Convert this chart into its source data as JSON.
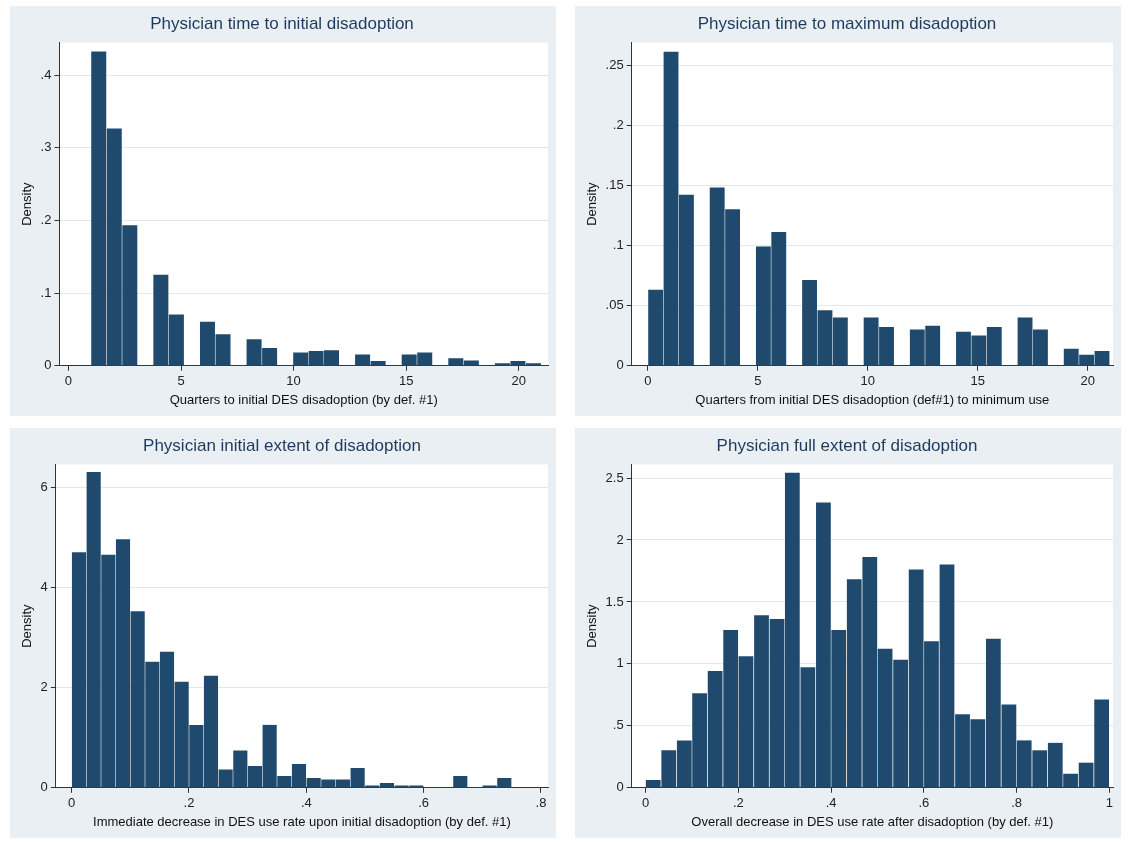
{
  "chart_data": [
    {
      "type": "histogram",
      "title": "Physician time to initial disadoption",
      "xlabel": "Quarters to initial DES disadoption (by def. #1)",
      "ylabel": "Density",
      "color": "#1f4a6e",
      "grid": "y",
      "bins": [
        1,
        1.69,
        2.38,
        3.07,
        3.76,
        4.45,
        5.14,
        5.83,
        6.52,
        7.21,
        7.9,
        8.59,
        9.28,
        9.97,
        10.66,
        11.34,
        12.03,
        12.72,
        13.41,
        14.1,
        14.79,
        15.48,
        16.17,
        16.86,
        17.55,
        18.24,
        18.93,
        19.62,
        20.31,
        21
      ],
      "values": [
        0.432,
        0.326,
        0.193,
        0,
        0.125,
        0.07,
        0,
        0.06,
        0.043,
        0,
        0.036,
        0.024,
        0,
        0.018,
        0.02,
        0.021,
        0,
        0.015,
        0.006,
        0,
        0.015,
        0.018,
        0,
        0.01,
        0.007,
        0,
        0.003,
        0.006,
        0.003
      ],
      "xlim": [
        -0.4,
        21.3
      ],
      "ylim": [
        0,
        0.445
      ],
      "xticks": [
        0,
        5,
        10,
        15,
        20
      ],
      "yticks": [
        0,
        {
          "value": 0.1,
          "label": ".1"
        },
        {
          "value": 0.2,
          "label": ".2"
        },
        {
          "value": 0.3,
          "label": ".3"
        },
        {
          "value": 0.4,
          "label": ".4"
        }
      ]
    },
    {
      "type": "histogram",
      "title": "Physician time to maximum disadoption",
      "xlabel": "Quarters from initial DES disadoption (def#1) to minimum use",
      "ylabel": "Density",
      "color": "#1f4a6e",
      "grid": "y",
      "bins": [
        0,
        0.7,
        1.4,
        2.1,
        2.8,
        3.5,
        4.2,
        4.9,
        5.6,
        6.3,
        7,
        7.7,
        8.4,
        9.1,
        9.8,
        10.5,
        11.2,
        11.9,
        12.6,
        13.3,
        14,
        14.7,
        15.4,
        16.1,
        16.8,
        17.5,
        18.2,
        18.9,
        19.6,
        20.3,
        21
      ],
      "values": [
        0.063,
        0.261,
        0.142,
        0,
        0.148,
        0.13,
        0,
        0.099,
        0.111,
        0,
        0.071,
        0.046,
        0.04,
        0,
        0.04,
        0.032,
        0,
        0.03,
        0.033,
        0,
        0.028,
        0.025,
        0.032,
        0,
        0.04,
        0.03,
        0,
        0.014,
        0.009,
        0.012
      ],
      "xlim": [
        -0.74,
        21.15
      ],
      "ylim": [
        0,
        0.269
      ],
      "xticks": [
        0,
        5,
        10,
        15,
        20
      ],
      "yticks": [
        0,
        {
          "value": 0.05,
          "label": ".05"
        },
        {
          "value": 0.1,
          "label": ".1"
        },
        {
          "value": 0.15,
          "label": ".15"
        },
        {
          "value": 0.2,
          "label": ".2"
        },
        {
          "value": 0.25,
          "label": ".25"
        }
      ]
    },
    {
      "type": "histogram",
      "title": "Physician initial extent of disadoption",
      "xlabel": "Immediate decrease in DES use rate upon initial disadoption (by def. #1)",
      "ylabel": "Density",
      "color": "#1f4a6e",
      "grid": "y",
      "bins": [
        0,
        0.025,
        0.05,
        0.075,
        0.1,
        0.125,
        0.15,
        0.175,
        0.2,
        0.225,
        0.25,
        0.275,
        0.3,
        0.325,
        0.35,
        0.375,
        0.4,
        0.425,
        0.45,
        0.475,
        0.5,
        0.525,
        0.55,
        0.575,
        0.6,
        0.625,
        0.65,
        0.675,
        0.7,
        0.725,
        0.75
      ],
      "values": [
        4.7,
        6.3,
        4.65,
        4.96,
        3.52,
        2.51,
        2.71,
        2.11,
        1.25,
        2.23,
        0.36,
        0.74,
        0.43,
        1.25,
        0.23,
        0.47,
        0.19,
        0.16,
        0.16,
        0.39,
        0.04,
        0.09,
        0.04,
        0.04,
        0,
        0,
        0.23,
        0,
        0.04,
        0.19
      ],
      "xlim": [
        -0.027,
        0.812
      ],
      "ylim": [
        0,
        6.46
      ],
      "xticks": [
        0,
        {
          "value": 0.2,
          "label": ".2"
        },
        {
          "value": 0.4,
          "label": ".4"
        },
        {
          "value": 0.6,
          "label": ".6"
        },
        {
          "value": 0.8,
          "label": ".8"
        }
      ],
      "yticks": [
        0,
        2,
        4,
        6
      ]
    },
    {
      "type": "histogram",
      "title": "Physician full extent of disadoption",
      "xlabel": "Overall decrease in DES use rate after disadoption (by def. #1)",
      "ylabel": "Density",
      "color": "#1f4a6e",
      "grid": "y",
      "bins": [
        0,
        0.033,
        0.067,
        0.1,
        0.133,
        0.167,
        0.2,
        0.233,
        0.267,
        0.3,
        0.333,
        0.367,
        0.4,
        0.433,
        0.467,
        0.5,
        0.533,
        0.567,
        0.6,
        0.633,
        0.667,
        0.7,
        0.733,
        0.767,
        0.8,
        0.833,
        0.867,
        0.9,
        0.933,
        0.967,
        1
      ],
      "values": [
        0.06,
        0.3,
        0.38,
        0.76,
        0.94,
        1.27,
        1.06,
        1.39,
        1.36,
        2.54,
        0.97,
        2.3,
        1.27,
        1.68,
        1.86,
        1.12,
        1.03,
        1.76,
        1.18,
        1.8,
        0.59,
        0.55,
        1.2,
        0.67,
        0.38,
        0.3,
        0.36,
        0.11,
        0.2,
        0.71
      ],
      "xlim": [
        -0.03,
        1.008
      ],
      "ylim": [
        0,
        2.61
      ],
      "xticks": [
        0,
        {
          "value": 0.2,
          "label": ".2"
        },
        {
          "value": 0.4,
          "label": ".4"
        },
        {
          "value": 0.6,
          "label": ".6"
        },
        {
          "value": 0.8,
          "label": ".8"
        },
        1
      ],
      "yticks": [
        0,
        {
          "value": 0.5,
          "label": ".5"
        },
        1,
        1.5,
        2,
        2.5
      ]
    }
  ]
}
